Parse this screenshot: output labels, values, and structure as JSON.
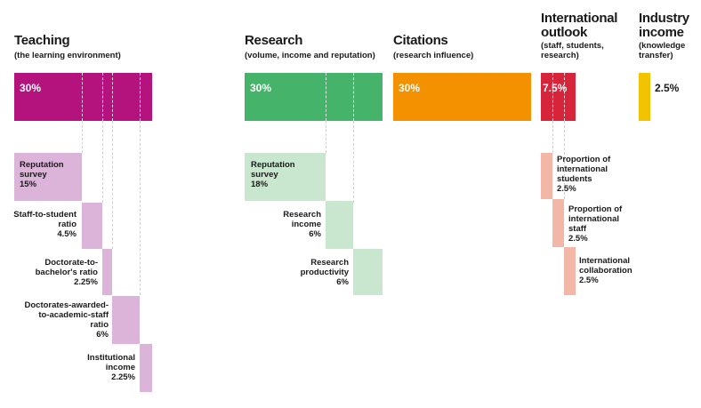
{
  "colors": {
    "teaching": "#b4137d",
    "teaching_light": "#ddb4d9",
    "research": "#45b36a",
    "research_light": "#c9e7cf",
    "citations": "#f49100",
    "international": "#d6243a",
    "international_light": "#f2b7a7",
    "industry": "#f2c300"
  },
  "teaching": {
    "title": "Teaching",
    "subtitle": "(the learning environment)",
    "percent": "30%",
    "items": [
      {
        "label": [
          "Reputation",
          "survey"
        ],
        "value": "15%"
      },
      {
        "label": [
          "Staff-to-student",
          "ratio"
        ],
        "value": "4.5%"
      },
      {
        "label": [
          "Doctorate-to-",
          "bachelor's ratio"
        ],
        "value": "2.25%"
      },
      {
        "label": [
          "Doctorates-awarded-",
          "to-academic-staff",
          "ratio"
        ],
        "value": "6%"
      },
      {
        "label": [
          "Institutional",
          "income"
        ],
        "value": "2.25%"
      }
    ]
  },
  "research": {
    "title": "Research",
    "subtitle": "(volume, income and reputation)",
    "percent": "30%",
    "items": [
      {
        "label": [
          "Reputation",
          "survey"
        ],
        "value": "18%"
      },
      {
        "label": [
          "Research",
          "income"
        ],
        "value": "6%"
      },
      {
        "label": [
          "Research",
          "productivity"
        ],
        "value": "6%"
      }
    ]
  },
  "citations": {
    "title": "Citations",
    "subtitle": "(research influence)",
    "percent": "30%"
  },
  "international": {
    "title": [
      "International",
      "outlook"
    ],
    "subtitle": [
      "(staff, students,",
      "research)"
    ],
    "percent": "7.5%",
    "items": [
      {
        "label": [
          "Proportion of",
          "international",
          "students"
        ],
        "value": "2.5%"
      },
      {
        "label": [
          "Proportion of",
          "international",
          "staff"
        ],
        "value": "2.5%"
      },
      {
        "label": [
          "International",
          "collaboration"
        ],
        "value": "2.5%"
      }
    ]
  },
  "industry": {
    "title": [
      "Industry",
      "income"
    ],
    "subtitle": [
      "(knowledge",
      "transfer)"
    ],
    "percent": "2.5%"
  }
}
